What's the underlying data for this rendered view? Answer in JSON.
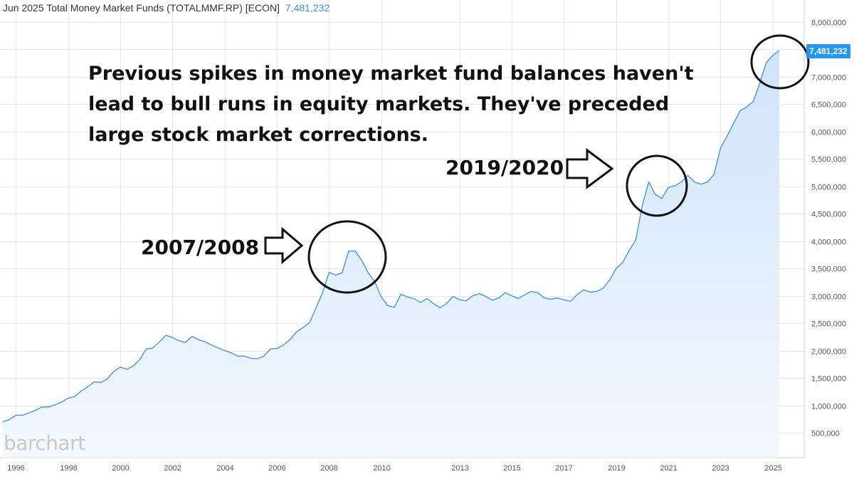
{
  "header": {
    "title": "Jun 2025 Total Money Market Funds (TOTALMMF.RP) [ECON]",
    "last_value": "7,481,232"
  },
  "annotations": {
    "main_note": "Previous spikes in money market fund balances haven't lead to bull runs in equity markets. They've preceded large stock market corrections.",
    "label_2008": "2007/2008",
    "label_2019": "2019/2020"
  },
  "brand": "barchart",
  "last_price_tag": "7,481,232",
  "colors": {
    "line": "#3a8ee6",
    "fill_top": "#cfe4fb",
    "fill_bottom": "#f3f8fe",
    "grid": "#e6e6e6",
    "tag": "#2196f3",
    "annotation": "#111111"
  },
  "chart_data": {
    "type": "area",
    "title": "Total Money Market Funds (TOTALMMF.RP)",
    "xlabel": "",
    "ylabel": "",
    "ylim": [
      300000,
      8150000
    ],
    "xlim": [
      1995.5,
      2026.0
    ],
    "grid": true,
    "y_ticks": [
      500000,
      1000000,
      1500000,
      2000000,
      2500000,
      3000000,
      3500000,
      4000000,
      4500000,
      5000000,
      5500000,
      6000000,
      6500000,
      7000000,
      7500000,
      8000000
    ],
    "y_tick_labels": [
      "500,000",
      "1,000,000",
      "1,500,000",
      "2,000,000",
      "2,500,000",
      "3,000,000",
      "3,500,000",
      "4,000,000",
      "4,500,000",
      "5,000,000",
      "5,500,000",
      "6,000,000",
      "6,500,000",
      "7,000,000",
      "7,500,000",
      "8,000,000"
    ],
    "x_ticks": [
      1996,
      1998,
      2000,
      2002,
      2004,
      2006,
      2008,
      2010,
      2013,
      2015,
      2017,
      2019,
      2021,
      2023,
      2025
    ],
    "x_tick_labels": [
      "1996",
      "1998",
      "2000",
      "2002",
      "2004",
      "2006",
      "2008",
      "2010",
      "2013",
      "2015",
      "2017",
      "2019",
      "2021",
      "2023",
      "2025"
    ],
    "series": [
      {
        "x": [
          1995.5,
          1995.75,
          1996.0,
          1996.25,
          1996.5,
          1996.75,
          1997.0,
          1997.25,
          1997.5,
          1997.75,
          1998.0,
          1998.25,
          1998.5,
          1998.75,
          1999.0,
          1999.25,
          1999.5,
          1999.75,
          2000.0,
          2000.25,
          2000.5,
          2000.75,
          2001.0,
          2001.25,
          2001.5,
          2001.75,
          2002.0,
          2002.25,
          2002.5,
          2002.75,
          2003.0,
          2003.25,
          2003.5,
          2003.75,
          2004.0,
          2004.25,
          2004.5,
          2004.75,
          2005.0,
          2005.25,
          2005.5,
          2005.75,
          2006.0,
          2006.25,
          2006.5,
          2006.75,
          2007.0,
          2007.25,
          2007.5,
          2007.75,
          2008.0,
          2008.25,
          2008.5,
          2008.75,
          2009.0,
          2009.25,
          2009.5,
          2009.75,
          2010.0,
          2010.25,
          2010.5,
          2010.75,
          2011.0,
          2011.25,
          2011.5,
          2011.75,
          2012.0,
          2012.25,
          2012.5,
          2012.75,
          2013.0,
          2013.25,
          2013.5,
          2013.75,
          2014.0,
          2014.25,
          2014.5,
          2014.75,
          2015.0,
          2015.25,
          2015.5,
          2015.75,
          2016.0,
          2016.25,
          2016.5,
          2016.75,
          2017.0,
          2017.25,
          2017.5,
          2017.75,
          2018.0,
          2018.25,
          2018.5,
          2018.75,
          2019.0,
          2019.25,
          2019.5,
          2019.75,
          2020.0,
          2020.25,
          2020.5,
          2020.75,
          2021.0,
          2021.25,
          2021.5,
          2021.75,
          2022.0,
          2022.25,
          2022.5,
          2022.75,
          2023.0,
          2023.25,
          2023.5,
          2023.75,
          2024.0,
          2024.25,
          2024.5,
          2024.75,
          2025.0,
          2025.25
        ],
        "y": [
          700000,
          740000,
          820000,
          820000,
          860000,
          910000,
          970000,
          970000,
          1010000,
          1060000,
          1130000,
          1160000,
          1260000,
          1340000,
          1430000,
          1420000,
          1480000,
          1620000,
          1700000,
          1660000,
          1720000,
          1840000,
          2030000,
          2050000,
          2160000,
          2280000,
          2240000,
          2180000,
          2150000,
          2260000,
          2200000,
          2160000,
          2100000,
          2050000,
          2000000,
          1960000,
          1900000,
          1900000,
          1860000,
          1850000,
          1900000,
          2030000,
          2040000,
          2100000,
          2200000,
          2340000,
          2420000,
          2510000,
          2780000,
          3060000,
          3430000,
          3380000,
          3420000,
          3820000,
          3820000,
          3650000,
          3420000,
          3260000,
          2980000,
          2820000,
          2790000,
          3030000,
          2980000,
          2950000,
          2880000,
          2950000,
          2860000,
          2780000,
          2860000,
          2990000,
          2930000,
          2910000,
          3000000,
          3040000,
          2990000,
          2920000,
          2960000,
          3060000,
          3000000,
          2950000,
          3020000,
          3080000,
          3060000,
          2960000,
          2940000,
          2960000,
          2930000,
          2900000,
          3020000,
          3110000,
          3070000,
          3080000,
          3140000,
          3290000,
          3500000,
          3610000,
          3830000,
          4020000,
          4650000,
          5080000,
          4850000,
          4780000,
          4980000,
          5010000,
          5080000,
          5200000,
          5080000,
          5040000,
          5080000,
          5220000,
          5700000,
          5920000,
          6150000,
          6380000,
          6450000,
          6550000,
          6880000,
          7260000,
          7390000,
          7481232
        ]
      }
    ]
  }
}
